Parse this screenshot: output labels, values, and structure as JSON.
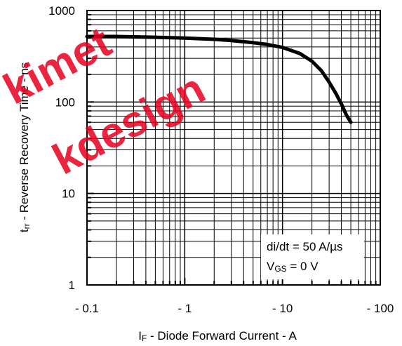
{
  "watermark": {
    "line1": "kimet",
    "line2": "kdesign",
    "color": "#e8001e"
  },
  "chart_data": {
    "type": "line",
    "xlabel": {
      "main": "I",
      "sub": "F",
      "rest": " - Diode Forward Current - A"
    },
    "ylabel": {
      "main": "t",
      "sub": "rr",
      "rest": " - Reverse Recovery Time - ns"
    },
    "x_scale": "log",
    "y_scale": "log",
    "xlim": [
      0.1,
      100
    ],
    "ylim": [
      1,
      1000
    ],
    "x_ticks": [
      {
        "value": 0.1,
        "label": "- 0.1"
      },
      {
        "value": 1,
        "label": "- 1"
      },
      {
        "value": 10,
        "label": "- 10"
      },
      {
        "value": 100,
        "label": "- 100"
      }
    ],
    "y_ticks": [
      {
        "value": 1,
        "label": "1"
      },
      {
        "value": 10,
        "label": "10"
      },
      {
        "value": 100,
        "label": "100"
      },
      {
        "value": 1000,
        "label": "1000"
      }
    ],
    "grid": true,
    "annotations": {
      "line1": "di/dt = 50 A/µs",
      "line2_main": "V",
      "line2_sub": "GS",
      "line2_rest": " = 0 V"
    },
    "series": [
      {
        "color": "#000000",
        "x": [
          0.1,
          0.2,
          0.5,
          1,
          2,
          3,
          5,
          7,
          10,
          15,
          20,
          25,
          30,
          35,
          40,
          45,
          50
        ],
        "y": [
          520,
          520,
          510,
          500,
          485,
          470,
          445,
          425,
          395,
          340,
          280,
          220,
          165,
          125,
          95,
          72,
          60
        ]
      }
    ]
  }
}
